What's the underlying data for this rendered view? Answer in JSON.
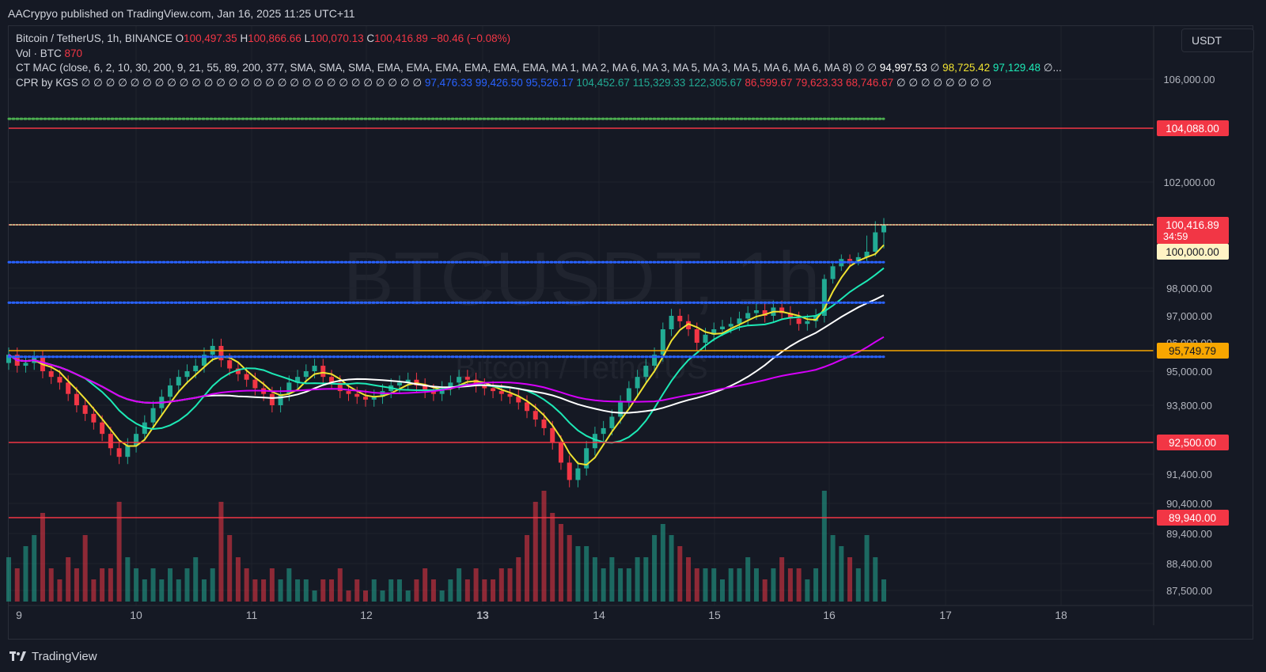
{
  "header": {
    "published": "AACrypyo published on TradingView.com, Jan 16, 2025 11:25 UTC+11"
  },
  "legend": {
    "symbol": "Bitcoin / TetherUS, 1h, BINANCE",
    "o_label": "O",
    "o": "100,497.35",
    "h_label": "H",
    "h": "100,866.66",
    "l_label": "L",
    "l": "100,070.13",
    "c_label": "C",
    "c": "100,416.89",
    "change": "−80.46 (−0.08%)",
    "vol_label": "Vol · BTC",
    "vol": "870",
    "ct_label": "CT MAC (close, 6, 2, 10, 30, 200, 9, 21, 55, 89, 200, 377, SMA, SMA, SMA, EMA, EMA, EMA, EMA, EMA, EMA, MA 1, MA 2, MA 6, MA 3, MA 5, MA 3, MA 5, MA 6, MA 6, MA 8)",
    "ct_pre": "∅ ∅",
    "ct_v1": "94,997.53",
    "ct_mid": "∅",
    "ct_v2": "98,725.42",
    "ct_v3": "97,129.48",
    "ct_post": "∅...",
    "cpr_label": "CPR by KGS",
    "cpr_pre": "∅ ∅ ∅ ∅ ∅ ∅ ∅ ∅ ∅ ∅ ∅ ∅ ∅ ∅ ∅ ∅ ∅ ∅ ∅ ∅ ∅ ∅ ∅ ∅ ∅ ∅ ∅ ∅",
    "cpr_b1": "97,476.33",
    "cpr_b2": "99,426.50",
    "cpr_b3": "95,526.17",
    "cpr_g1": "104,452.67",
    "cpr_g2": "115,329.33",
    "cpr_g3": "122,305.67",
    "cpr_r1": "86,599.67",
    "cpr_r2": "79,623.33",
    "cpr_r3": "68,746.67",
    "cpr_post": "∅ ∅ ∅ ∅ ∅ ∅ ∅ ∅"
  },
  "currency": "USDT",
  "watermark": {
    "big": "BTCUSDT, 1h",
    "small": "Bitcoin / TetherUS"
  },
  "footer": {
    "brand": "TradingView"
  },
  "colors": {
    "up": "#22ab94",
    "down": "#f23645",
    "bg": "#151924",
    "level_orange": "#f7a600",
    "level_red": "#f23645",
    "blue_dots": "#2962ff"
  },
  "chart_data": {
    "type": "line",
    "title": "Bitcoin / TetherUS, 1h, BINANCE",
    "x_ticks": [
      "9",
      "10",
      "11",
      "12",
      "13",
      "14",
      "15",
      "16",
      "17",
      "18"
    ],
    "y_ticks": [
      "106,000.00",
      "102,000.00",
      "98,000.00",
      "97,000.00",
      "96,000.00",
      "95,000.00",
      "93,800.00",
      "91,400.00",
      "90,400.00",
      "89,400.00",
      "88,400.00",
      "87,500.00"
    ],
    "price_labels": [
      {
        "text": "104,088.00",
        "kind": "red"
      },
      {
        "text": "100,416.89",
        "kind": "red",
        "sub": "34:59"
      },
      {
        "text": "100,000.00",
        "kind": "yellow"
      },
      {
        "text": "95,749.79",
        "kind": "orange"
      },
      {
        "text": "92,500.00",
        "kind": "red"
      },
      {
        "text": "89,940.00",
        "kind": "red"
      }
    ],
    "horizontal_levels": [
      {
        "value": 104088,
        "style": "solid",
        "color": "#f23645"
      },
      {
        "value": 100416.89,
        "style": "solid",
        "color": "#f7e0a0"
      },
      {
        "value": 95749.79,
        "style": "solid",
        "color": "#f7a600"
      },
      {
        "value": 92500,
        "style": "solid",
        "color": "#f23645"
      },
      {
        "value": 89940,
        "style": "solid",
        "color": "#f23645"
      },
      {
        "value": 104452.67,
        "style": "dotted",
        "color": "#4caf50"
      },
      {
        "value": 99426.5,
        "style": "dotted",
        "color": "#2962ff"
      },
      {
        "value": 97476.33,
        "style": "dotted",
        "color": "#2962ff"
      },
      {
        "value": 95526.17,
        "style": "dotted",
        "color": "#2962ff"
      }
    ],
    "close": [
      95600,
      95200,
      95300,
      95500,
      95000,
      94800,
      94600,
      94200,
      93800,
      93500,
      93200,
      92800,
      92300,
      92000,
      92400,
      92800,
      93200,
      93700,
      94100,
      94500,
      94800,
      95000,
      95200,
      95600,
      95900,
      95400,
      95100,
      94900,
      94700,
      94400,
      94200,
      93800,
      94200,
      94600,
      94800,
      95000,
      95200,
      94800,
      94600,
      94300,
      94200,
      94100,
      94000,
      94100,
      94300,
      94500,
      94600,
      94700,
      94500,
      94300,
      94200,
      94400,
      94600,
      94800,
      94700,
      94500,
      94400,
      94300,
      94200,
      94100,
      93900,
      93600,
      93300,
      93000,
      92500,
      91800,
      91200,
      91600,
      92300,
      92800,
      93000,
      93400,
      93900,
      94400,
      94800,
      95200,
      95600,
      96500,
      97000,
      96800,
      96500,
      96000,
      96300,
      96500,
      96600,
      96700,
      96900,
      97100,
      97200,
      97000,
      97300,
      97100,
      96900,
      96700,
      96800,
      97000,
      98500,
      99200,
      99600,
      99500,
      99700,
      100000,
      100300,
      100416
    ],
    "volume_rel": [
      0.4,
      0.3,
      0.5,
      0.6,
      0.8,
      0.3,
      0.2,
      0.4,
      0.3,
      0.6,
      0.2,
      0.3,
      0.3,
      0.9,
      0.4,
      0.3,
      0.2,
      0.3,
      0.2,
      0.3,
      0.2,
      0.3,
      0.4,
      0.2,
      0.3,
      0.9,
      0.6,
      0.4,
      0.3,
      0.2,
      0.2,
      0.3,
      0.2,
      0.3,
      0.2,
      0.2,
      0.1,
      0.2,
      0.2,
      0.3,
      0.1,
      0.2,
      0.1,
      0.2,
      0.1,
      0.2,
      0.2,
      0.1,
      0.2,
      0.3,
      0.2,
      0.1,
      0.2,
      0.3,
      0.2,
      0.3,
      0.2,
      0.2,
      0.3,
      0.3,
      0.4,
      0.6,
      0.9,
      1.0,
      0.8,
      0.7,
      0.6,
      0.5,
      0.5,
      0.4,
      0.3,
      0.4,
      0.3,
      0.3,
      0.4,
      0.4,
      0.6,
      0.7,
      0.6,
      0.5,
      0.4,
      0.3,
      0.3,
      0.3,
      0.2,
      0.3,
      0.3,
      0.4,
      0.3,
      0.2,
      0.3,
      0.4,
      0.3,
      0.3,
      0.2,
      0.3,
      1.0,
      0.6,
      0.5,
      0.4,
      0.3,
      0.6,
      0.4,
      0.2
    ],
    "series": [
      {
        "name": "MA 3",
        "color": "#f0e231"
      },
      {
        "name": "MA 5",
        "color": "#1de9b6"
      },
      {
        "name": "MA 6",
        "color": "#ffffff"
      },
      {
        "name": "MA 8",
        "color": "#d500f9"
      }
    ]
  }
}
